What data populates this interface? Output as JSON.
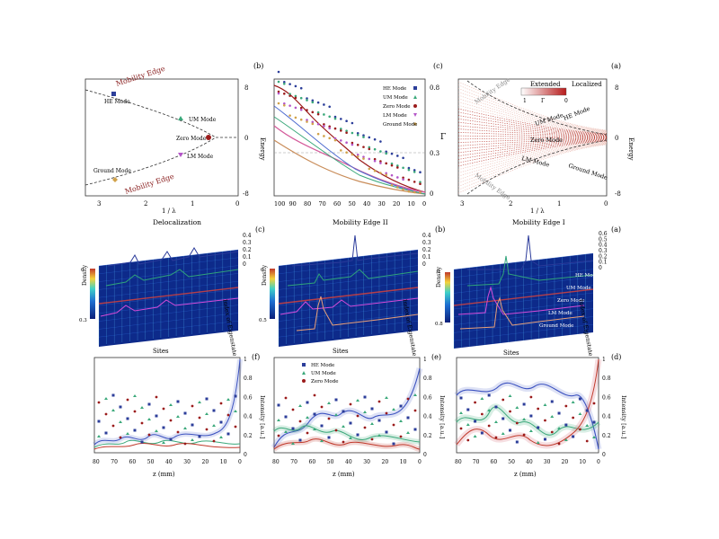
{
  "figure": {
    "note": "Figure appears horizontally mirrored in the screenshot",
    "panels": {
      "a": {
        "label": "(a)",
        "ylabel": "Energy",
        "xlabel": "1 / λ",
        "yticks": [
          "8",
          "0",
          "-8"
        ],
        "xticks": [
          "0",
          "1",
          "2",
          "3"
        ],
        "legend_localized": "Localized",
        "legend_extended": "Extended",
        "colorbar_ticks": [
          "0",
          "Γ",
          "1"
        ],
        "curve_labels": [
          "HE Mode",
          "UM Mode",
          "Zero Mode",
          "LM Mode",
          "Ground Mode"
        ],
        "edge_labels": [
          "Mobility Edge",
          "Mobility Edge"
        ],
        "colors": {
          "extended": "#c0392b",
          "localized": "#f7d9d2"
        }
      },
      "b": {
        "label": "(b)",
        "ylabel": "Energy",
        "xlabel": "1 / λ",
        "yticks": [
          "8",
          "0",
          "-8"
        ],
        "xticks": [
          "0",
          "1",
          "2",
          "3"
        ],
        "edge_labels": [
          "Mobility Edge",
          "Mobility Edge"
        ],
        "markers": [
          {
            "name": "HE Mode",
            "color": "#2c3e9a"
          },
          {
            "name": "UM Mode",
            "color": "#3aa87a"
          },
          {
            "name": "Zero Mode",
            "color": "#9b1b1b"
          },
          {
            "name": "LM Mode",
            "color": "#b455c8"
          },
          {
            "name": "Ground Mode",
            "color": "#d1a24a"
          }
        ]
      },
      "c": {
        "label": "(c)",
        "ylabel": "Γ",
        "yticks": [
          "0.8",
          "0.3",
          "0"
        ],
        "xticks": [
          "0",
          "10",
          "20",
          "30",
          "40",
          "50",
          "60",
          "70",
          "80",
          "90",
          "100"
        ],
        "legend": [
          "HE Mode",
          "UM Mode",
          "Zero Mode",
          "LM Mode",
          "Ground Mode"
        ],
        "colors": [
          "#2c3e9a",
          "#3aa87a",
          "#9b1b1b",
          "#b455c8",
          "#d1a24a"
        ]
      },
      "d": {
        "label": "(a)",
        "title": "Mobility Edge I",
        "zticks": [
          "0.6",
          "0.5",
          "0.4",
          "0.3",
          "0.2",
          "0.1",
          "0"
        ],
        "ylabel": "Index of Eigenstate",
        "yticks": [
          "10",
          "20",
          "30",
          "40",
          "50"
        ],
        "xlabel": "Sites",
        "xticks": [
          "10",
          "20",
          "30",
          "40",
          "50"
        ],
        "colorbar_label": "Density",
        "colorbar_ticks": [
          "0",
          "0.8"
        ],
        "mode_labels": [
          "HE Mode",
          "UM Mode",
          "Zero Mode",
          "LM Mode",
          "Ground Mode"
        ]
      },
      "e": {
        "label": "(b)",
        "title": "Mobility Edge II",
        "zticks": [
          "0.4",
          "0.3",
          "0.2",
          "0.1",
          "0"
        ],
        "ylabel": "Index of Eigenstate",
        "yticks": [
          "10",
          "20",
          "30",
          "40",
          "50",
          "60"
        ],
        "xlabel": "Sites",
        "xticks": [
          "10",
          "20",
          "30",
          "40",
          "50",
          "60"
        ],
        "colorbar_label": "Density",
        "colorbar_ticks": [
          "0",
          "0.5"
        ]
      },
      "f": {
        "label": "(c)",
        "title": "Delocalization",
        "zticks": [
          "0.4",
          "0.3",
          "0.2",
          "0.1",
          "0"
        ],
        "ylabel": "Index of Eigenstate",
        "yticks": [
          "10",
          "20",
          "30",
          "40",
          "50",
          "60"
        ],
        "xlabel": "Sites",
        "xticks": [
          "10",
          "20",
          "30",
          "40",
          "50",
          "60"
        ],
        "colorbar_label": "Density",
        "colorbar_ticks": [
          "0",
          "0.3"
        ]
      },
      "g": {
        "label": "(d)",
        "ylabel": "Intensity [a.u.]",
        "yticks": [
          "1",
          "0.8",
          "0.6",
          "0.4",
          "0.2",
          "0"
        ],
        "xlabel": "z (mm)",
        "xticks": [
          "0",
          "10",
          "20",
          "30",
          "40",
          "50",
          "60",
          "70",
          "80"
        ]
      },
      "h": {
        "label": "(e)",
        "ylabel": "Intensity [a.u.]",
        "yticks": [
          "1",
          "0.8",
          "0.6",
          "0.4",
          "0.2",
          "0"
        ],
        "xlabel": "z (mm)",
        "xticks": [
          "0",
          "10",
          "20",
          "30",
          "40",
          "50",
          "60",
          "70",
          "80"
        ],
        "legend": [
          "HE Mode",
          "UM Mode",
          "Zero Mode"
        ]
      },
      "i": {
        "label": "(f)",
        "ylabel": "Intensity [a.u.]",
        "yticks": [
          "1",
          "0.8",
          "0.6",
          "0.4",
          "0.2",
          "0"
        ],
        "xlabel": "z (mm)",
        "xticks": [
          "0",
          "10",
          "20",
          "30",
          "40",
          "50",
          "60",
          "70",
          "80"
        ]
      }
    }
  }
}
